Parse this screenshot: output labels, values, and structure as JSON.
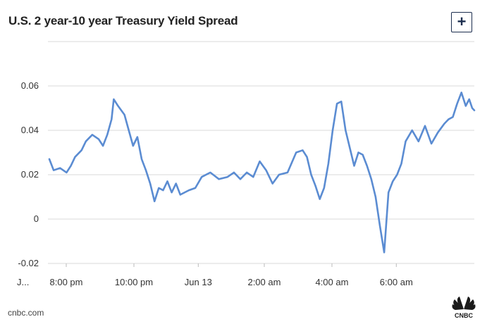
{
  "header": {
    "title": "U.S. 2 year-10 year Treasury Yield Spread",
    "expand_label": "+"
  },
  "footer": {
    "source": "cnbc.com",
    "logo_text": "CNBC"
  },
  "colors": {
    "line": "#5b8cd2",
    "grid": "#d9d9d9",
    "button": "#1b2d4e"
  },
  "chart_data": {
    "type": "line",
    "title": "U.S. 2 year-10 year Treasury Yield Spread",
    "xlabel": "",
    "ylabel": "",
    "ylim": [
      -0.02,
      0.06
    ],
    "yticks": [
      {
        "value": 0.06,
        "label": "0.06"
      },
      {
        "value": 0.04,
        "label": "0.04"
      },
      {
        "value": 0.02,
        "label": "0.02"
      },
      {
        "value": 0,
        "label": "0"
      },
      {
        "value": -0.02,
        "label": "-0.02"
      }
    ],
    "xlim_hours": [
      -0.5,
      9.9
    ],
    "xticks": [
      {
        "value": -0.2,
        "label": "J..."
      },
      {
        "value": 0.8,
        "label": "8:00 pm"
      },
      {
        "value": 2.85,
        "label": "10:00 pm"
      },
      {
        "value": 4.8,
        "label": "Jun 13"
      },
      {
        "value": 6.8,
        "label": "2:00 am"
      },
      {
        "value": 8.85,
        "label": "4:00 am"
      },
      {
        "value": 10.8,
        "label": "6:00 am"
      }
    ],
    "grid": true,
    "legend": "none",
    "series": [
      {
        "points": [
          [
            0.0,
            0.027
          ],
          [
            0.1,
            0.022
          ],
          [
            0.25,
            0.023
          ],
          [
            0.4,
            0.021
          ],
          [
            0.5,
            0.024
          ],
          [
            0.6,
            0.028
          ],
          [
            0.75,
            0.031
          ],
          [
            0.85,
            0.035
          ],
          [
            1.0,
            0.038
          ],
          [
            1.15,
            0.036
          ],
          [
            1.25,
            0.033
          ],
          [
            1.35,
            0.038
          ],
          [
            1.45,
            0.045
          ],
          [
            1.5,
            0.054
          ],
          [
            1.6,
            0.051
          ],
          [
            1.75,
            0.047
          ],
          [
            1.85,
            0.04
          ],
          [
            1.95,
            0.033
          ],
          [
            2.05,
            0.037
          ],
          [
            2.15,
            0.027
          ],
          [
            2.25,
            0.022
          ],
          [
            2.35,
            0.016
          ],
          [
            2.45,
            0.008
          ],
          [
            2.55,
            0.014
          ],
          [
            2.65,
            0.013
          ],
          [
            2.75,
            0.017
          ],
          [
            2.85,
            0.012
          ],
          [
            2.95,
            0.016
          ],
          [
            3.05,
            0.011
          ],
          [
            3.25,
            0.013
          ],
          [
            3.4,
            0.014
          ],
          [
            3.55,
            0.019
          ],
          [
            3.75,
            0.021
          ],
          [
            3.95,
            0.018
          ],
          [
            4.15,
            0.019
          ],
          [
            4.3,
            0.021
          ],
          [
            4.45,
            0.018
          ],
          [
            4.6,
            0.021
          ],
          [
            4.75,
            0.019
          ],
          [
            4.9,
            0.026
          ],
          [
            5.05,
            0.022
          ],
          [
            5.2,
            0.016
          ],
          [
            5.35,
            0.02
          ],
          [
            5.55,
            0.021
          ],
          [
            5.75,
            0.03
          ],
          [
            5.9,
            0.031
          ],
          [
            6.0,
            0.028
          ],
          [
            6.1,
            0.02
          ],
          [
            6.2,
            0.015
          ],
          [
            6.3,
            0.009
          ],
          [
            6.4,
            0.014
          ],
          [
            6.5,
            0.025
          ],
          [
            6.6,
            0.04
          ],
          [
            6.7,
            0.052
          ],
          [
            6.8,
            0.053
          ],
          [
            6.9,
            0.04
          ],
          [
            7.0,
            0.032
          ],
          [
            7.1,
            0.024
          ],
          [
            7.2,
            0.03
          ],
          [
            7.3,
            0.029
          ],
          [
            7.4,
            0.024
          ],
          [
            7.5,
            0.018
          ],
          [
            7.6,
            0.01
          ],
          [
            7.7,
            -0.003
          ],
          [
            7.8,
            -0.015
          ],
          [
            7.9,
            0.012
          ],
          [
            8.0,
            0.017
          ],
          [
            8.1,
            0.02
          ],
          [
            8.2,
            0.025
          ],
          [
            8.3,
            0.035
          ],
          [
            8.45,
            0.04
          ],
          [
            8.6,
            0.035
          ],
          [
            8.75,
            0.042
          ],
          [
            8.9,
            0.034
          ],
          [
            9.05,
            0.039
          ],
          [
            9.2,
            0.043
          ],
          [
            9.3,
            0.045
          ],
          [
            9.4,
            0.046
          ],
          [
            9.5,
            0.052
          ],
          [
            9.6,
            0.057
          ],
          [
            9.7,
            0.051
          ],
          [
            9.78,
            0.054
          ],
          [
            9.85,
            0.05
          ],
          [
            9.9,
            0.049
          ]
        ]
      }
    ]
  }
}
